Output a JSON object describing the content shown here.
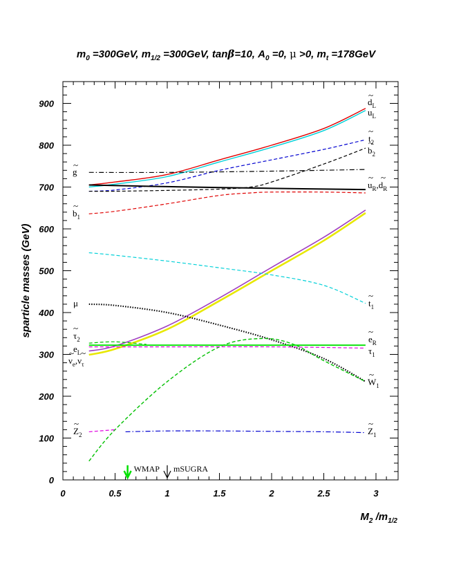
{
  "chart_data": {
    "type": "line",
    "title": "m_0 =300GeV, m_1/2 =300GeV, tanβ=10, A_0 =0, μ >0, m_t =178GeV",
    "title_parts": {
      "m0": "m",
      "m0_sub": "0",
      "m0_val": " =300GeV, ",
      "mhalf": "m",
      "mhalf_sub": "1/2",
      "mhalf_val": " =300GeV, tan",
      "beta": "β",
      "tb_val": "=10, ",
      "A0": "A",
      "A0_sub": "0",
      "A0_val": " =0, ",
      "mu": "μ",
      "mu_val": " >0, ",
      "mt": "m",
      "mt_sub": "t",
      "mt_val": " =178GeV"
    },
    "xlabel": "M_2 /m_1/2",
    "xlabel_parts": {
      "M": "M",
      "M_sub": "2",
      "mid": " /m",
      "den_sub": "1/2"
    },
    "ylabel": "sparticle masses (GeV)",
    "xlim": [
      0,
      3.2
    ],
    "ylim": [
      0,
      950
    ],
    "x_ticks": [
      0,
      0.5,
      1,
      1.5,
      2,
      2.5,
      3
    ],
    "x_tick_labels": [
      "0",
      "0.5",
      "1",
      "1.5",
      "2",
      "2.5",
      "3"
    ],
    "y_ticks": [
      0,
      100,
      200,
      300,
      400,
      500,
      600,
      700,
      800,
      900
    ],
    "y_tick_labels": [
      "0",
      "100",
      "200",
      "300",
      "400",
      "500",
      "600",
      "700",
      "800",
      "900"
    ],
    "series": [
      {
        "key": "dL",
        "color": "#e00000",
        "dash": "solid",
        "width": 1.4,
        "x": [
          0.25,
          0.5,
          1.0,
          1.5,
          2.0,
          2.5,
          2.9
        ],
        "y": [
          705,
          712,
          730,
          765,
          800,
          840,
          888
        ]
      },
      {
        "key": "uL",
        "color": "#00d0d8",
        "dash": "solid",
        "width": 1.4,
        "x": [
          0.25,
          0.5,
          1.0,
          1.5,
          2.0,
          2.5,
          2.9
        ],
        "y": [
          700,
          707,
          725,
          760,
          795,
          835,
          883
        ]
      },
      {
        "key": "t2",
        "color": "#0000d0",
        "dash": "dash",
        "width": 1.2,
        "x": [
          0.25,
          0.5,
          1.0,
          1.5,
          2.0,
          2.5,
          2.9
        ],
        "y": [
          690,
          693,
          710,
          740,
          765,
          790,
          813
        ]
      },
      {
        "key": "b2",
        "color": "#000000",
        "dash": "dash",
        "width": 1.2,
        "x": [
          0.25,
          0.5,
          1.0,
          1.5,
          1.8,
          2.0,
          2.5,
          2.9
        ],
        "y": [
          690,
          690,
          692,
          695,
          700,
          712,
          755,
          793
        ]
      },
      {
        "key": "gluino",
        "color": "#000000",
        "dash": "dashdot",
        "width": 1.2,
        "x": [
          0.25,
          1.0,
          2.0,
          2.9
        ],
        "y": [
          735,
          735,
          738,
          742
        ]
      },
      {
        "key": "uR_dR",
        "color": "#000000",
        "dash": "solid",
        "width": 2.0,
        "x": [
          0.25,
          1.0,
          2.0,
          2.9
        ],
        "y": [
          705,
          701,
          697,
          694
        ]
      },
      {
        "key": "b1",
        "color": "#e00000",
        "dash": "dash",
        "width": 1.2,
        "x": [
          0.25,
          0.5,
          1.0,
          1.5,
          1.8,
          2.0,
          2.5,
          2.9
        ],
        "y": [
          636,
          642,
          660,
          680,
          686,
          688,
          688,
          686
        ]
      },
      {
        "key": "W1_purple",
        "color": "#a040c0",
        "dash": "solid",
        "width": 1.6,
        "x": [
          0.25,
          0.5,
          1.0,
          1.5,
          2.0,
          2.5,
          2.9
        ],
        "y": [
          308,
          320,
          368,
          435,
          508,
          580,
          645
        ]
      },
      {
        "key": "eL_yellow",
        "color": "#e8e800",
        "dash": "solid",
        "width": 2.6,
        "x": [
          0.25,
          0.5,
          1.0,
          1.5,
          2.0,
          2.5,
          2.9
        ],
        "y": [
          299,
          313,
          360,
          428,
          500,
          572,
          638
        ]
      },
      {
        "key": "t1",
        "color": "#00d0d8",
        "dash": "dash",
        "width": 1.2,
        "x": [
          0.25,
          0.5,
          1.0,
          1.5,
          2.0,
          2.5,
          2.9
        ],
        "y": [
          543,
          537,
          523,
          507,
          490,
          465,
          422
        ]
      },
      {
        "key": "mu",
        "color": "#000000",
        "dash": "dot",
        "width": 2.2,
        "x": [
          0.25,
          0.5,
          1.0,
          1.5,
          2.0,
          2.5,
          2.9
        ],
        "y": [
          420,
          417,
          400,
          370,
          335,
          290,
          235
        ]
      },
      {
        "key": "W1_green",
        "color": "#00c000",
        "dash": "dash",
        "width": 1.4,
        "x": [
          0.25,
          0.5,
          1.0,
          1.5,
          1.9,
          2.2,
          2.5,
          2.9
        ],
        "y": [
          45,
          120,
          235,
          318,
          338,
          325,
          285,
          235
        ]
      },
      {
        "key": "eR",
        "color": "#00e000",
        "dash": "solid",
        "width": 1.8,
        "x": [
          0.25,
          1.0,
          2.0,
          2.9
        ],
        "y": [
          322,
          322,
          322,
          322
        ]
      },
      {
        "key": "tau1",
        "color": "#e000e0",
        "dash": "dash",
        "width": 1.2,
        "x": [
          0.25,
          1.0,
          2.0,
          2.9
        ],
        "y": [
          318,
          318,
          318,
          315
        ]
      },
      {
        "key": "tau2_green",
        "color": "#00c000",
        "dash": "dash",
        "width": 1.2,
        "x": [
          0.25,
          0.5,
          0.8
        ],
        "y": [
          327,
          330,
          324
        ]
      },
      {
        "key": "Z2_magenta",
        "color": "#e000e0",
        "dash": "dash",
        "width": 1.2,
        "x": [
          0.25,
          0.5
        ],
        "y": [
          115,
          120
        ]
      },
      {
        "key": "Z1",
        "color": "#0000d0",
        "dash": "dashdot",
        "width": 1.2,
        "x": [
          0.6,
          1.0,
          1.5,
          2.0,
          2.5,
          2.9
        ],
        "y": [
          115,
          117,
          117,
          116,
          115,
          113
        ]
      }
    ],
    "curve_labels": [
      {
        "key": "dL",
        "text": "d",
        "sub": "L",
        "tilde": true
      },
      {
        "key": "uL",
        "text": "u",
        "sub": "L",
        "tilde": false
      },
      {
        "key": "t2",
        "text": "t",
        "sub": "2",
        "tilde": true
      },
      {
        "key": "b2",
        "text": "b",
        "sub": "2",
        "tilde": true
      },
      {
        "key": "gluino",
        "text": "g",
        "sub": "",
        "tilde": true
      },
      {
        "key": "uR",
        "text": "u",
        "sub": "R",
        "tilde": true,
        "suffix": ",d",
        "suffix_sub": "R"
      },
      {
        "key": "b1",
        "text": "b",
        "sub": "1",
        "tilde": true
      },
      {
        "key": "t1",
        "text": "t",
        "sub": "1",
        "tilde": true
      },
      {
        "key": "mu",
        "text": "μ",
        "sub": "",
        "tilde": false
      },
      {
        "key": "tau2",
        "text": "τ",
        "sub": "2",
        "tilde": true
      },
      {
        "key": "eL",
        "text": "e",
        "sub": "L",
        "tilde": false
      },
      {
        "key": "nu",
        "text": "ν",
        "sub": "e",
        "tilde": true,
        "suffix": ",ν",
        "suffix_sub": "τ"
      },
      {
        "key": "eR",
        "text": "e",
        "sub": "R",
        "tilde": true
      },
      {
        "key": "tau1",
        "text": "τ",
        "sub": "1",
        "tilde": false
      },
      {
        "key": "W1",
        "text": "W",
        "sub": "1",
        "tilde": true
      },
      {
        "key": "Z2",
        "text": "Z",
        "sub": "2",
        "tilde": true
      },
      {
        "key": "Z1",
        "text": "Z",
        "sub": "1",
        "tilde": true
      }
    ],
    "annotations": [
      {
        "key": "wmap",
        "text": "WMAP",
        "x": 0.62,
        "y_top": 35,
        "y_bottom": 5,
        "color": "#00e000"
      },
      {
        "key": "msugra",
        "text": "mSUGRA",
        "x": 1.0,
        "y_top": 35,
        "y_bottom": 5,
        "color": "#000000"
      }
    ]
  }
}
